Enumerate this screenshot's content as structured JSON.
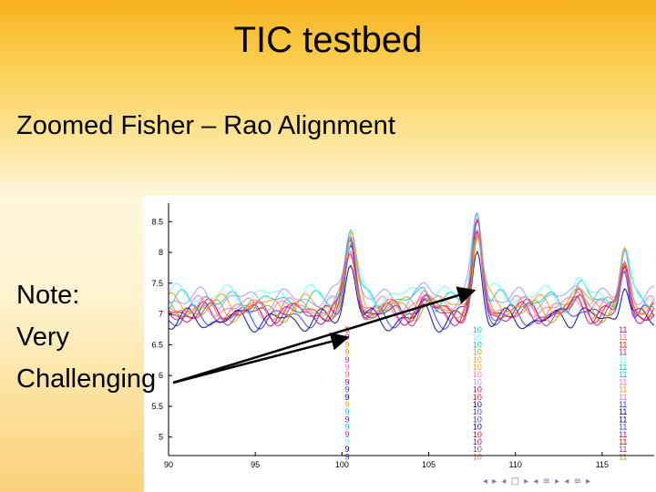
{
  "slide": {
    "title": "TIC testbed",
    "subtitle": "Zoomed Fisher – Rao Alignment",
    "note_lines": [
      "Note:",
      "Very",
      "Challenging"
    ],
    "nav_symbols": "◂ ▸ ◂ □ ▸ ◂ ≡ ▸ ◂ ≡ ▸"
  },
  "chart_data": {
    "type": "line",
    "title": "",
    "xlabel": "",
    "ylabel": "",
    "xlim": [
      90,
      118
    ],
    "ylim": [
      4.7,
      8.8
    ],
    "x_ticks": [
      90,
      95,
      100,
      105,
      110,
      115
    ],
    "x_tick_labels": [
      "90",
      "95",
      "100",
      "105",
      "110",
      "115"
    ],
    "y_ticks": [
      5,
      5.5,
      6,
      6.5,
      7,
      7.5,
      8,
      8.5
    ],
    "y_tick_labels": [
      "5",
      "5.5",
      "6",
      "6.5",
      "7",
      "7.5",
      "8",
      "8.5"
    ],
    "grid": false,
    "peaks": [
      {
        "x": 100.5,
        "height": 1.05,
        "width": 0.45
      },
      {
        "x": 107.8,
        "height": 1.25,
        "width": 0.4
      },
      {
        "x": 116.3,
        "height": 0.75,
        "width": 0.35
      },
      {
        "x": 104.8,
        "height": 0.18,
        "width": 0.4
      },
      {
        "x": 113.7,
        "height": 0.22,
        "width": 0.45
      }
    ],
    "series": [
      {
        "color": "#ff0000",
        "baseline": 7.05,
        "peak_scale": 1.05
      },
      {
        "color": "#c00080",
        "baseline": 7.0,
        "peak_scale": 1.0
      },
      {
        "color": "#ff66cc",
        "baseline": 7.1,
        "peak_scale": 0.95
      },
      {
        "color": "#3333ff",
        "baseline": 6.95,
        "peak_scale": 1.15
      },
      {
        "color": "#000080",
        "baseline": 6.9,
        "peak_scale": 0.9
      },
      {
        "color": "#00cccc",
        "baseline": 7.2,
        "peak_scale": 1.2
      },
      {
        "color": "#66ffff",
        "baseline": 7.3,
        "peak_scale": 0.85
      },
      {
        "color": "#ff9900",
        "baseline": 7.15,
        "peak_scale": 1.0
      },
      {
        "color": "#cc9900",
        "baseline": 7.05,
        "peak_scale": 0.92
      },
      {
        "color": "#993399",
        "baseline": 7.0,
        "peak_scale": 1.08
      },
      {
        "color": "#ff6666",
        "baseline": 7.1,
        "peak_scale": 0.88
      },
      {
        "color": "#9999ff",
        "baseline": 7.25,
        "peak_scale": 1.1
      }
    ],
    "label_columns": [
      {
        "x": 100.3,
        "text": "9",
        "colors": [
          "#ff0000",
          "#c00080",
          "#ff9900",
          "#cc9900",
          "#993399",
          "#ff66cc",
          "#ff6666",
          "#c00080",
          "#3333ff",
          "#000080",
          "#ff9900",
          "#00cccc",
          "#3333ff",
          "#00cccc",
          "#993399",
          "#66ffff",
          "#000080",
          "#3333ff"
        ]
      },
      {
        "x": 107.8,
        "text": "10",
        "colors": [
          "#00cccc",
          "#66ffff",
          "#00cccc",
          "#cc9900",
          "#ff9900",
          "#ff9900",
          "#ff66cc",
          "#9999ff",
          "#c00080",
          "#ff0000",
          "#000080",
          "#3333ff",
          "#3333ff",
          "#000080",
          "#ff0000",
          "#c00080",
          "#993399",
          "#ff6666"
        ]
      },
      {
        "x": 116.2,
        "text": "11",
        "colors": [
          "#c00080",
          "#ff6666",
          "#ff0000",
          "#993399",
          "#66ffff",
          "#00cccc",
          "#00cccc",
          "#ff66cc",
          "#ff9900",
          "#ff66cc",
          "#3333ff",
          "#000080",
          "#000080",
          "#3333ff",
          "#c00080",
          "#ff0000",
          "#993399",
          "#cc9900"
        ]
      }
    ],
    "arrows": [
      {
        "from_label": "Challenging",
        "to_x": 100.3,
        "to_y": 6.62
      },
      {
        "from_label": "Challenging",
        "to_x": 107.6,
        "to_y": 7.38
      }
    ]
  }
}
